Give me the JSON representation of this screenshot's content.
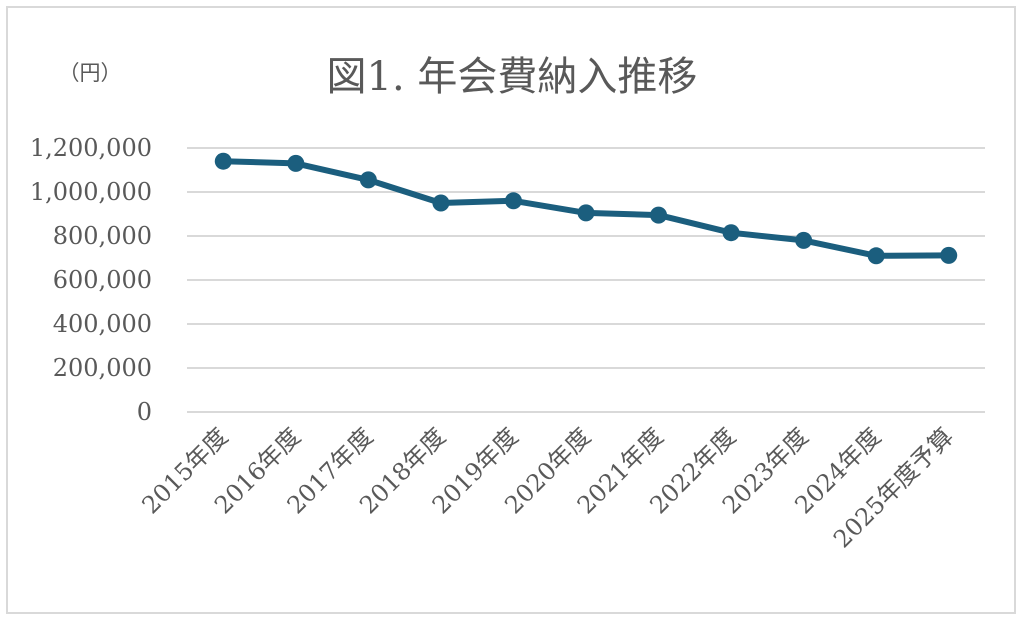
{
  "chart_data": {
    "type": "line",
    "title": "図1. 年会費納入推移",
    "unit_label": "（円）",
    "xlabel": "",
    "ylabel": "",
    "categories": [
      "2015年度",
      "2016年度",
      "2017年度",
      "2018年度",
      "2019年度",
      "2020年度",
      "2021年度",
      "2022年度",
      "2023年度",
      "2024年度",
      "2025年度予算"
    ],
    "series": [
      {
        "values": [
          1140000,
          1130000,
          1055000,
          950000,
          960000,
          905000,
          895000,
          815000,
          780000,
          710000,
          712000
        ]
      }
    ],
    "yticks": [
      0,
      200000,
      400000,
      600000,
      800000,
      1000000,
      1200000
    ],
    "ytick_labels": [
      "0",
      "200,000",
      "400,000",
      "600,000",
      "800,000",
      "1,000,000",
      "1,200,000"
    ],
    "ylim": [
      0,
      1200000
    ],
    "grid": true,
    "legend": "none",
    "line_color": "#1b5e7e",
    "grid_color": "#d9d9d9",
    "text_color": "#595959"
  }
}
